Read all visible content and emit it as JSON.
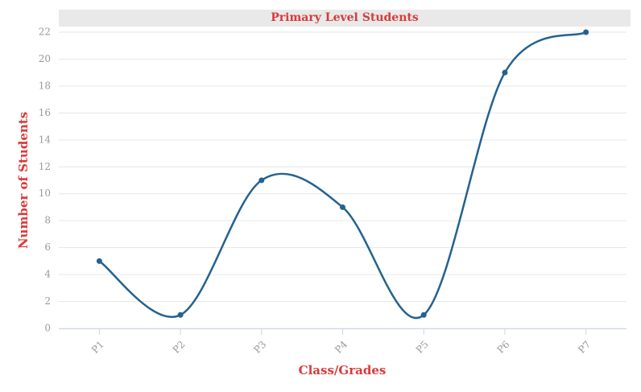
{
  "chart_data": {
    "type": "line",
    "title": "Primary Level Students",
    "x_label": "Class/Grades",
    "y_label": "Number of Students",
    "categories": [
      "P1",
      "P2",
      "P3",
      "P4",
      "P5",
      "P6",
      "P7"
    ],
    "series": [
      {
        "name": "Students",
        "color": "#23628f",
        "values": [
          5,
          1,
          11,
          9,
          1,
          19,
          22
        ]
      }
    ],
    "ylim": [
      0,
      22
    ],
    "yticks": [
      0,
      2,
      4,
      6,
      8,
      10,
      12,
      14,
      16,
      18,
      20,
      22
    ],
    "grid": true,
    "smooth": true
  }
}
